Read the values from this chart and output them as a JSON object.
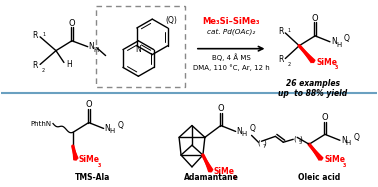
{
  "background_color": "#ffffff",
  "divider_color": "#6aa0c0",
  "red_color": "#ff0000",
  "black_color": "#000000",
  "top_reagent1": "Me₃Si–SiMe₃",
  "top_reagent2": "cat. Pd(OAc)₂",
  "top_reagent3": "BQ, 4 Å MS",
  "top_reagent4": "DMA, 110 °C, Ar, 12 h",
  "result_text1": "26 examples",
  "result_text2": "up  to 88% yield",
  "label1": "TMS-Ala",
  "label2": "Adamantane",
  "label3": "Oleic acid"
}
